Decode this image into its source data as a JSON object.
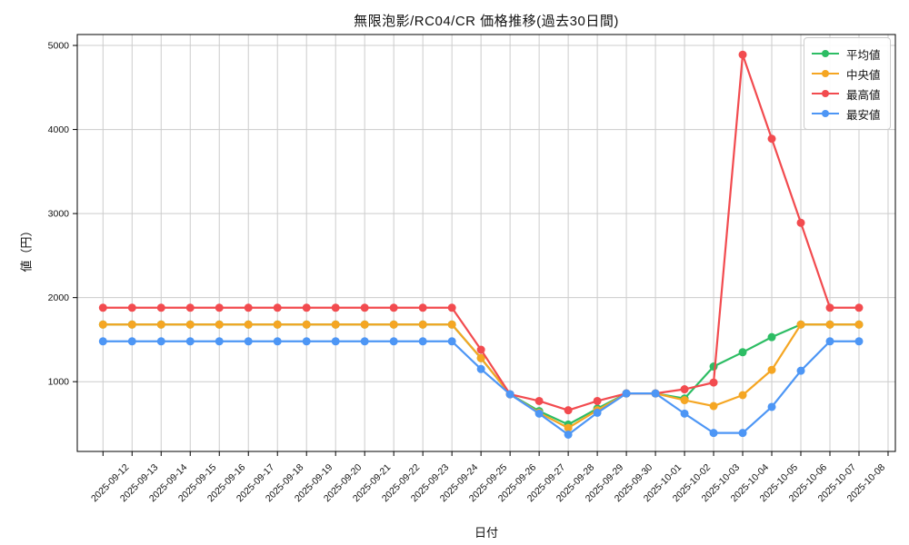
{
  "chart_data": {
    "type": "line",
    "title": "無限泡影/RC04/CR 価格推移(過去30日間)",
    "xlabel": "日付",
    "ylabel": "値（円）",
    "grid": true,
    "legend_position": "upper right",
    "yticks": [
      1000,
      2000,
      3000,
      4000,
      5000
    ],
    "ylim": [
      170,
      5130
    ],
    "x": [
      "2025-09-12",
      "2025-09-13",
      "2025-09-14",
      "2025-09-15",
      "2025-09-16",
      "2025-09-17",
      "2025-09-18",
      "2025-09-19",
      "2025-09-20",
      "2025-09-21",
      "2025-09-22",
      "2025-09-23",
      "2025-09-24",
      "2025-09-25",
      "2025-09-26",
      "2025-09-27",
      "2025-09-28",
      "2025-09-29",
      "2025-09-30",
      "2025-10-01",
      "2025-10-02",
      "2025-10-03",
      "2025-10-04",
      "2025-10-05",
      "2025-10-06",
      "2025-10-07",
      "2025-10-08"
    ],
    "series": [
      {
        "key": "average",
        "name": "平均値",
        "color": "#2dbd64",
        "values": [
          1680,
          1680,
          1680,
          1680,
          1680,
          1680,
          1680,
          1680,
          1680,
          1680,
          1680,
          1680,
          1680,
          1280,
          850,
          650,
          490,
          680,
          860,
          860,
          800,
          1180,
          1350,
          1530,
          1680,
          1680,
          1680
        ]
      },
      {
        "key": "median",
        "name": "中央値",
        "color": "#f5a623",
        "values": [
          1680,
          1680,
          1680,
          1680,
          1680,
          1680,
          1680,
          1680,
          1680,
          1680,
          1680,
          1680,
          1680,
          1280,
          850,
          630,
          450,
          660,
          860,
          860,
          780,
          710,
          840,
          1140,
          1680,
          1680,
          1680
        ]
      },
      {
        "key": "max",
        "name": "最高値",
        "color": "#f24b4f",
        "values": [
          1880,
          1880,
          1880,
          1880,
          1880,
          1880,
          1880,
          1880,
          1880,
          1880,
          1880,
          1880,
          1880,
          1380,
          850,
          770,
          660,
          770,
          860,
          860,
          910,
          990,
          4890,
          3890,
          2890,
          1880,
          1880
        ]
      },
      {
        "key": "min",
        "name": "最安値",
        "color": "#4d96f5",
        "values": [
          1480,
          1480,
          1480,
          1480,
          1480,
          1480,
          1480,
          1480,
          1480,
          1480,
          1480,
          1480,
          1480,
          1150,
          850,
          620,
          370,
          630,
          860,
          860,
          620,
          390,
          390,
          700,
          1130,
          1480,
          1480
        ]
      }
    ],
    "colors": {
      "grid": "#cccccc",
      "spine": "#000000",
      "tick_text": "#111111",
      "background": "#ffffff"
    }
  }
}
